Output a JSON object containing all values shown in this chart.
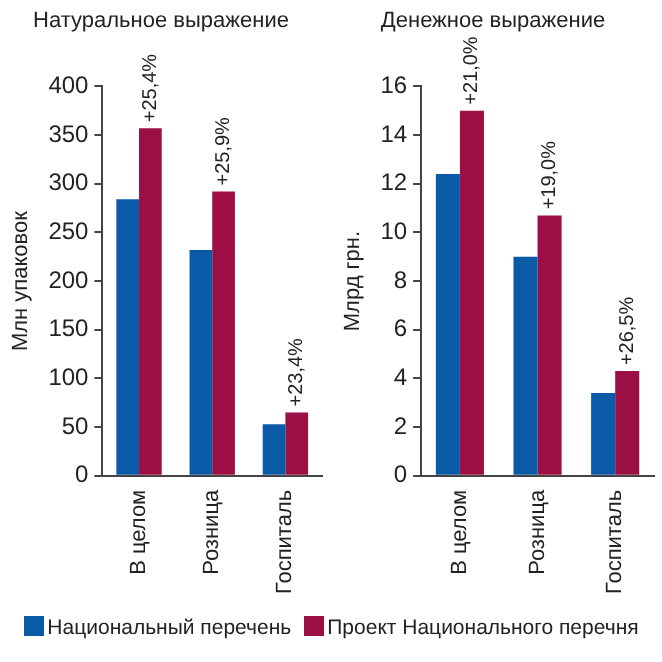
{
  "chart_data": [
    {
      "type": "bar",
      "title": "Натуральное выражение",
      "ylabel": "Млн упаковок",
      "categories": [
        "В целом",
        "Розница",
        "Госпиталь"
      ],
      "series": [
        {
          "name": "Национальный перечень",
          "color": "#0a5aa8",
          "values": [
            284,
            232,
            53
          ]
        },
        {
          "name": "Проект Национального перечня",
          "color": "#9b0f45",
          "values": [
            357,
            292,
            65
          ]
        }
      ],
      "ylim": [
        0,
        400
      ],
      "yticks": [
        0,
        50,
        100,
        150,
        200,
        250,
        300,
        350,
        400
      ],
      "grid": false,
      "legend": "bottom",
      "annotations": [
        {
          "text": "+25,4%",
          "x": "В целом",
          "y": 357
        },
        {
          "text": "+25,9%",
          "x": "Розница",
          "y": 292
        },
        {
          "text": "+23,4%",
          "x": "Госпиталь",
          "y": 65
        }
      ]
    },
    {
      "type": "bar",
      "title": "Денежное выражение",
      "ylabel": "Млрд грн.",
      "categories": [
        "В целом",
        "Розница",
        "Госпиталь"
      ],
      "series": [
        {
          "color": "#0a5aa8",
          "values": [
            12.4,
            9.0,
            3.4
          ]
        },
        {
          "color": "#9b0f45",
          "values": [
            15.0,
            10.7,
            4.3
          ]
        }
      ],
      "ylim": [
        0,
        16
      ],
      "yticks": [
        0,
        2,
        4,
        6,
        8,
        10,
        12,
        14,
        16
      ],
      "grid": false,
      "annotations": [
        {
          "text": "+21,0%",
          "x": "В целом",
          "y": 15.0
        },
        {
          "text": "+19,0%",
          "x": "Розница",
          "y": 10.7
        },
        {
          "text": "+26,5%",
          "x": "Госпиталь",
          "y": 4.3
        }
      ]
    }
  ]
}
